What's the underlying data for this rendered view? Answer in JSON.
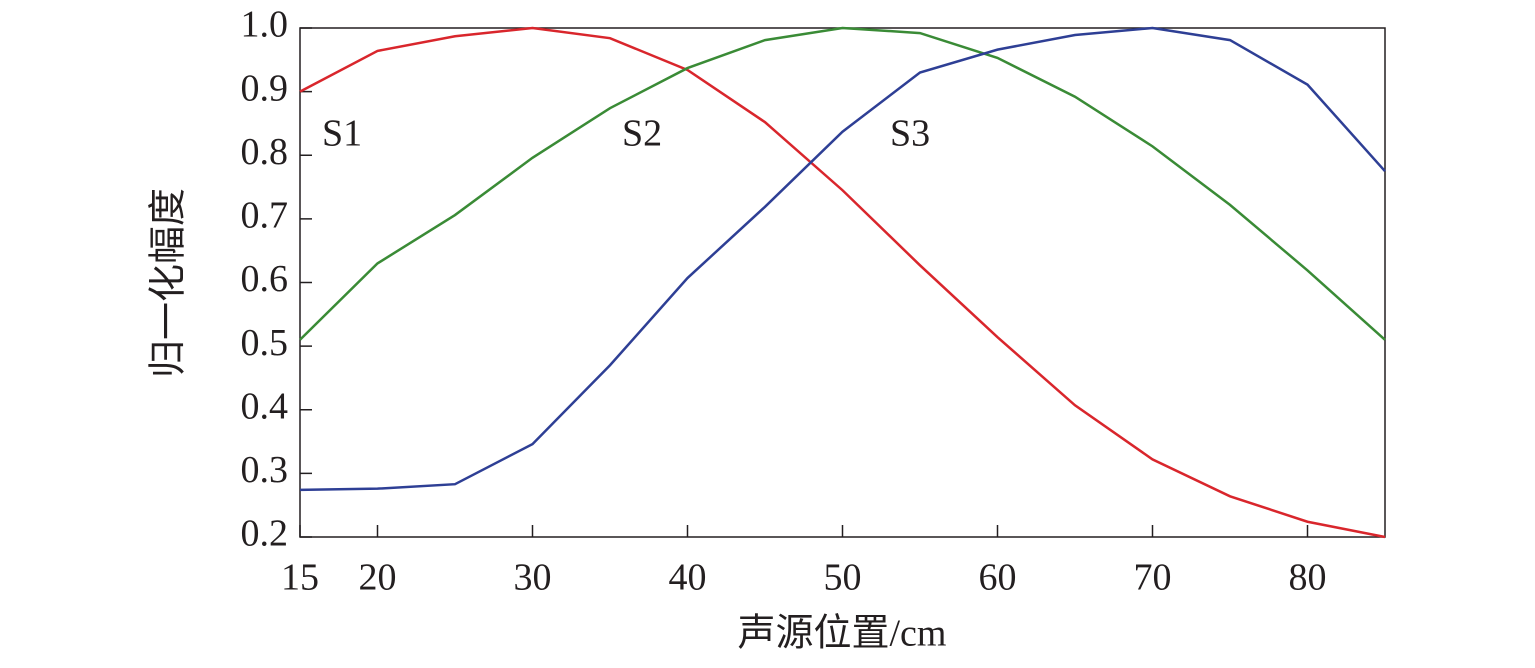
{
  "chart_data": {
    "type": "line",
    "xlabel": "声源位置/cm",
    "ylabel": "归一化幅度",
    "x": [
      15,
      20,
      25,
      30,
      35,
      40,
      45,
      50,
      55,
      60,
      65,
      70,
      75,
      80,
      85
    ],
    "series": [
      {
        "name": "S1",
        "color": "#d9262c",
        "values": [
          0.9,
          0.964,
          0.987,
          1.0,
          0.984,
          0.934,
          0.852,
          0.745,
          0.627,
          0.514,
          0.407,
          0.322,
          0.264,
          0.224,
          0.2
        ]
      },
      {
        "name": "S2",
        "color": "#3a8b36",
        "values": [
          0.51,
          0.63,
          0.706,
          0.796,
          0.874,
          0.937,
          0.981,
          1.0,
          0.992,
          0.953,
          0.892,
          0.814,
          0.722,
          0.619,
          0.51
        ]
      },
      {
        "name": "S3",
        "color": "#2e3f95",
        "values": [
          0.274,
          0.276,
          0.283,
          0.346,
          0.47,
          0.607,
          0.719,
          0.837,
          0.93,
          0.966,
          0.989,
          1.0,
          0.981,
          0.911,
          0.775
        ]
      }
    ],
    "xlim": [
      15,
      85
    ],
    "xticks": [
      15,
      20,
      30,
      40,
      50,
      60,
      70,
      80
    ],
    "ylim": [
      0.2,
      1
    ],
    "yticks": [
      0.2,
      0.3,
      0.4,
      0.5,
      0.6,
      0.7,
      0.8,
      0.9,
      {
        "value": 1,
        "label": "1.0"
      }
    ],
    "grid": false
  }
}
